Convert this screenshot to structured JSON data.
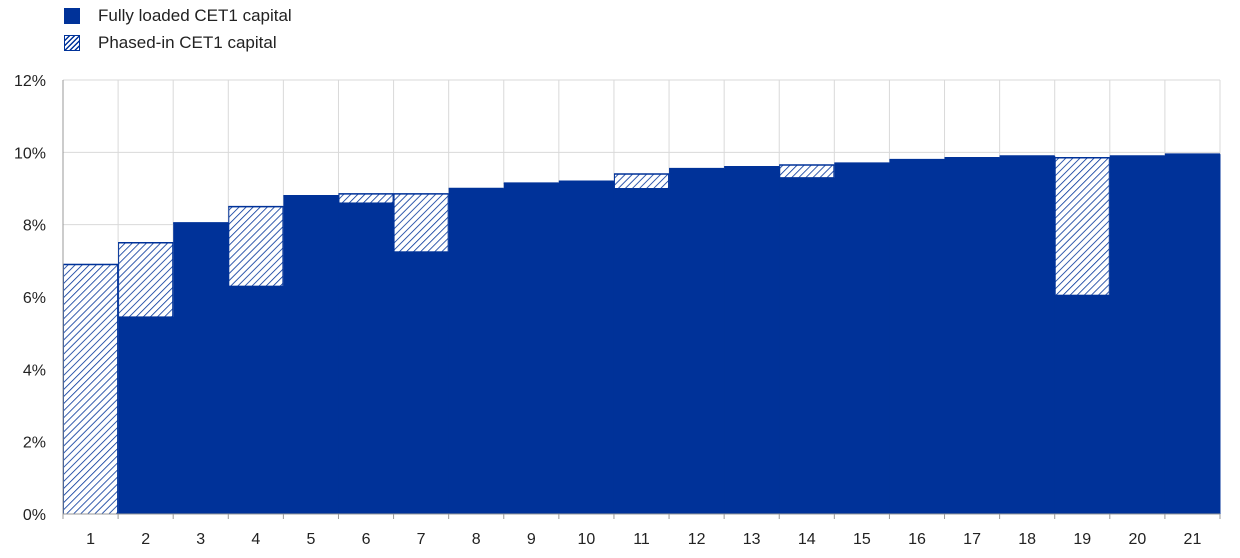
{
  "chart_data": {
    "type": "bar",
    "categories": [
      "1",
      "2",
      "3",
      "4",
      "5",
      "6",
      "7",
      "8",
      "9",
      "10",
      "11",
      "12",
      "13",
      "14",
      "15",
      "16",
      "17",
      "18",
      "19",
      "20",
      "21"
    ],
    "series": [
      {
        "name": "Fully loaded CET1 capital",
        "values": [
          0,
          5.45,
          8.05,
          6.3,
          8.8,
          8.6,
          7.25,
          9.0,
          9.15,
          9.2,
          9.0,
          9.55,
          9.6,
          9.3,
          9.7,
          9.8,
          9.85,
          9.9,
          6.05,
          9.9,
          9.95
        ]
      },
      {
        "name": "Phased-in CET1 capital",
        "values": [
          6.9,
          7.5,
          8.05,
          8.5,
          8.8,
          8.85,
          8.85,
          9.0,
          9.15,
          9.2,
          9.4,
          9.55,
          9.6,
          9.65,
          9.7,
          9.8,
          9.85,
          9.9,
          9.85,
          9.9,
          9.95
        ]
      }
    ],
    "y_ticks": [
      "0%",
      "2%",
      "4%",
      "6%",
      "8%",
      "10%",
      "12%"
    ],
    "ylim": [
      0,
      12
    ],
    "y_unit": "%",
    "grid": true,
    "legend_position": "top-left",
    "colors": {
      "fully_loaded": "#003299",
      "phased_in_hatch": "#003299",
      "grid": "#d9d9d9"
    }
  }
}
